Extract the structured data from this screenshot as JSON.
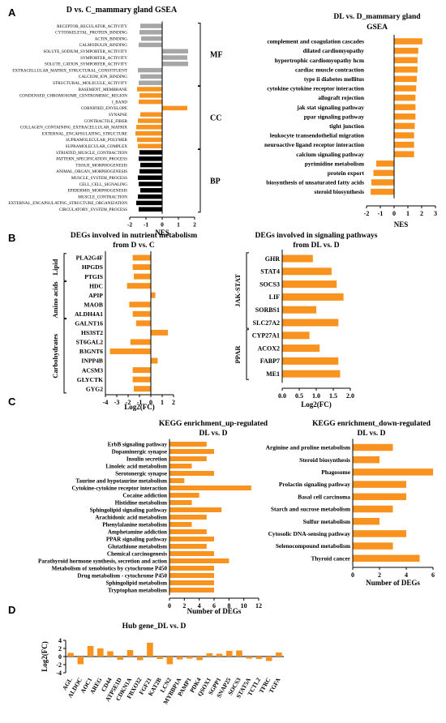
{
  "colors": {
    "orange": "#F7931E",
    "gray": "#A6A6A6",
    "black": "#000000"
  },
  "panel_letters": [
    "A",
    "B",
    "C",
    "D"
  ],
  "chart_data": [
    {
      "id": "A1",
      "type": "bar",
      "orientation": "horizontal",
      "title": "D vs. C_mammary gland GSEA",
      "xlabel": "NES",
      "xlim": [
        -2,
        2
      ],
      "xticks": [
        -2,
        -1,
        0,
        1,
        2
      ],
      "categories": [
        "RECEPTOR_REGULATOR_ACTIVITY",
        "CYTOSKELETAL_PROTEIN_BINDING",
        "ACTIN_BINDING",
        "CALMODULIN_BINDING",
        "SOLUTE_SODIUM_SYMPORTER_ACTIVITY",
        "SYMPORTER_ACTIVITY",
        "SOLUTE_CATION_SYMPORTER_ACTIVITY",
        "EXTRACELLULAR_MATRIX_STRUCTURAL_CONSTITUENT",
        "CALCIUM_ION_BINDING",
        "STRUCTURAL_MOLECULE_ACTIVITY",
        "BASEMENT_MEMBRANE",
        "CONDENSED_CHROMOSOME_CENTROMERIC_REGION",
        "I_BAND",
        "CORNIFIED_ENVELOPE",
        "SYNAPSE",
        "CONTRACTILE_FIBER",
        "COLLAGEN_CONTAINING_EXTRACELLULAR_MATRIX",
        "EXTERNAL_ENCAPSULATING_STRUCTURE",
        "SUPRAMOLECULAR_POLYMER",
        "SUPRAMOLECULAR_COMPLEX",
        "STRIATED_MUSCLE_CONTRACTION",
        "PATTERN_SPECIFICATION_PROCESS",
        "TISSUE_MORPHOGENESIS",
        "ANIMAL_ORGAN_MORPHOGENESIS",
        "MUSCLE_SYSTEM_PROCESS",
        "CELL_CELL_SIGNALING",
        "EPIDERMIS_MORPHOGENESIS",
        "MUSCLE_CONTRACTION",
        "EXTERNAL_ENCAPSULATING_STRUCTURE_ORGANIZATION",
        "CIRCULATORY_SYSTEM_PROCESS"
      ],
      "values": [
        -1.35,
        -1.4,
        -1.3,
        -1.45,
        1.6,
        1.55,
        1.6,
        -1.5,
        -1.35,
        -1.45,
        -1.55,
        -1.4,
        -1.45,
        1.55,
        -1.35,
        -1.5,
        -1.6,
        -1.65,
        -1.55,
        -1.5,
        -1.4,
        -1.45,
        -1.35,
        -1.4,
        -1.5,
        -1.45,
        -1.35,
        -1.5,
        -1.6,
        -1.45
      ],
      "groups": [
        {
          "label": "MF",
          "start": 0,
          "end": 9,
          "color": "#A6A6A6"
        },
        {
          "label": "CC",
          "start": 10,
          "end": 19,
          "color": "#F7931E"
        },
        {
          "label": "BP",
          "start": 20,
          "end": 29,
          "color": "#000000"
        }
      ]
    },
    {
      "id": "A2",
      "type": "bar",
      "orientation": "horizontal",
      "title": "DL vs. D_mammary gland",
      "subtitle": "GSEA",
      "xlabel": "NES",
      "xlim": [
        -2,
        3
      ],
      "xticks": [
        -2,
        -1,
        0,
        1,
        2,
        3
      ],
      "categories": [
        "complement and coagulation cascades",
        "dilated cardiomyopathy",
        "hypertrophic cardiomyopathy hcm",
        "cardiac muscle contraction",
        "type ii diabetes mellitus",
        "cytokine cytokine receptor interaction",
        "allograft rejection",
        "jak stat signaling pathway",
        "ppar signaling pathway",
        "tight junction",
        "leukocyte transendothelial migration",
        "neuroactive ligand receptor interaction",
        "calcium signaling pathway",
        "pyrimidine metabolism",
        "protein export",
        "biosynthesis of unsaturated fatty acids",
        "steroid biosynthesis"
      ],
      "values": [
        2.05,
        1.75,
        1.7,
        1.7,
        1.65,
        1.6,
        1.55,
        1.55,
        1.55,
        1.5,
        1.45,
        1.45,
        1.45,
        -1.3,
        -1.5,
        -1.65,
        -1.7
      ]
    },
    {
      "id": "B1",
      "type": "bar",
      "orientation": "horizontal",
      "title": "DEGs involved in nutrient metabolism",
      "subtitle": "from D vs. C",
      "xlabel": "Log2(FC)",
      "xlim": [
        -4,
        2
      ],
      "xticks": [
        -4,
        -3,
        -2,
        -1,
        0,
        1,
        2
      ],
      "categories": [
        "PLA2G4F",
        "HPGDS",
        "PTGIS",
        "HDC",
        "APIP",
        "MAOB",
        "ALDH4A1",
        "GALNT16",
        "HS3ST2",
        "ST6GAL2",
        "B3GNT6",
        "INPP4B",
        "ACSM3",
        "GLYCTK",
        "GYG2"
      ],
      "values": [
        -1.6,
        -1.6,
        -1.5,
        -2.1,
        0.4,
        -1.9,
        -1.6,
        -1.3,
        1.5,
        -1.8,
        -3.6,
        0.6,
        -1.6,
        -1.6,
        -1.5
      ],
      "groups": [
        {
          "label": "Lipid",
          "start": 0,
          "end": 2
        },
        {
          "label": "Amino acids",
          "start": 3,
          "end": 6
        },
        {
          "label": "Carbohydrates",
          "start": 7,
          "end": 14
        }
      ]
    },
    {
      "id": "B2",
      "type": "bar",
      "orientation": "horizontal",
      "title": "DEGs involved in signaling pathways",
      "subtitle": "from DL vs. D",
      "xlabel": "Log2(FC)",
      "xlim": [
        0,
        2
      ],
      "xticks": [
        0.0,
        0.5,
        1.0,
        1.5,
        2.0
      ],
      "xtick_labels": [
        "0.0",
        "0.5",
        "1.0",
        "1.5",
        "2.0"
      ],
      "categories": [
        "GHR",
        "STAT4",
        "SOCS3",
        "LIF",
        "SORBS1",
        "SLC27A2",
        "CYP27A1",
        "ACOX2",
        "FABP7",
        "ME1"
      ],
      "values": [
        0.9,
        1.45,
        1.6,
        1.8,
        1.0,
        1.65,
        0.8,
        1.1,
        1.65,
        1.7
      ],
      "groups": [
        {
          "label": "JAK-STAT",
          "start": 0,
          "end": 5
        },
        {
          "label": "PPAR",
          "start": 6,
          "end": 9
        }
      ]
    },
    {
      "id": "C1",
      "type": "bar",
      "orientation": "horizontal",
      "title": "KEGG enrichment_up-regulated",
      "subtitle": "DL vs. D",
      "xlabel": "Number of DEGs",
      "xlim": [
        0,
        12
      ],
      "xticks": [
        0,
        2,
        4,
        6,
        8,
        10,
        12
      ],
      "categories": [
        "ErbB signaling pathway",
        "Dopaminergic synapse",
        "Insulin secretion",
        "Linoleic acid metabolism",
        "Serotonergic synapse",
        "Taurine and hypotaurine metabolism",
        "Cytokine-cytokine receptor interaction",
        "Cocaine addiction",
        "Histidine metabolism",
        "Sphingolipid signaling pathway",
        "Arachidonic acid metabolism",
        "Phenylalanine metabolism",
        "Amphetamine addiction",
        "PPAR signaling pathway",
        "Glutathione metabolism",
        "Chemical carcinogenesis",
        "Parathyroid hormone synthesis, secretion and action",
        "Metabolism of xenobiotics by cytochrome P450",
        "Drug metabolism - cytochrome P450",
        "Sphingolipid metabolism",
        "Tryptophan metabolism"
      ],
      "values": [
        5,
        6,
        5,
        3,
        6,
        2,
        11,
        4,
        3,
        7,
        5,
        3,
        5,
        6,
        5,
        6,
        8,
        6,
        6,
        6,
        6
      ]
    },
    {
      "id": "C2",
      "type": "bar",
      "orientation": "horizontal",
      "title": "KEGG enrichment_down-regulated",
      "subtitle": "DL vs. D",
      "xlabel": "Number of DEGs",
      "xlim": [
        0,
        6
      ],
      "xticks": [
        0,
        2,
        4,
        6
      ],
      "categories": [
        "Arginine and proline metabolism",
        "Steroid biosynthesis",
        "Phagosome",
        "Prolactin signaling pathway",
        "Basal cell carcinoma",
        "Starch and sucrose metabolism",
        "Sulfur metabolism",
        "Cytosolic DNA-sensing pathway",
        "Selenocompound metabolism",
        "Thyroid cancer"
      ],
      "values": [
        3,
        2,
        6,
        4,
        4,
        3,
        2,
        4,
        3,
        5
      ]
    },
    {
      "id": "D",
      "type": "bar",
      "orientation": "vertical",
      "title": "Hub gene_DL vs. D",
      "ylabel": "Log2(FC)",
      "ylim": [
        -4,
        4
      ],
      "yticks": [
        -4,
        -2,
        0,
        2,
        4
      ],
      "categories": [
        "AGL",
        "ALDOC",
        "AOC1",
        "AREG",
        "CD44",
        "ATP5E1D",
        "CDKN1A",
        "FBXO32",
        "FGF21",
        "KAT2B",
        "LCN2",
        "MYBBP1A",
        "PAMP1",
        "PDK4",
        "QSOX1",
        "SGPP1",
        "SNAP25",
        "SOCS3",
        "STAT5A",
        "TCTL2",
        "TFRC",
        "TGFA"
      ],
      "values": [
        0.9,
        -1.9,
        2.6,
        2.0,
        1.3,
        -0.8,
        1.6,
        -0.9,
        3.4,
        -0.6,
        -1.9,
        -0.7,
        -0.5,
        -0.9,
        0.8,
        0.7,
        1.4,
        1.5,
        -0.5,
        -0.6,
        -1.1,
        1.0
      ]
    }
  ]
}
